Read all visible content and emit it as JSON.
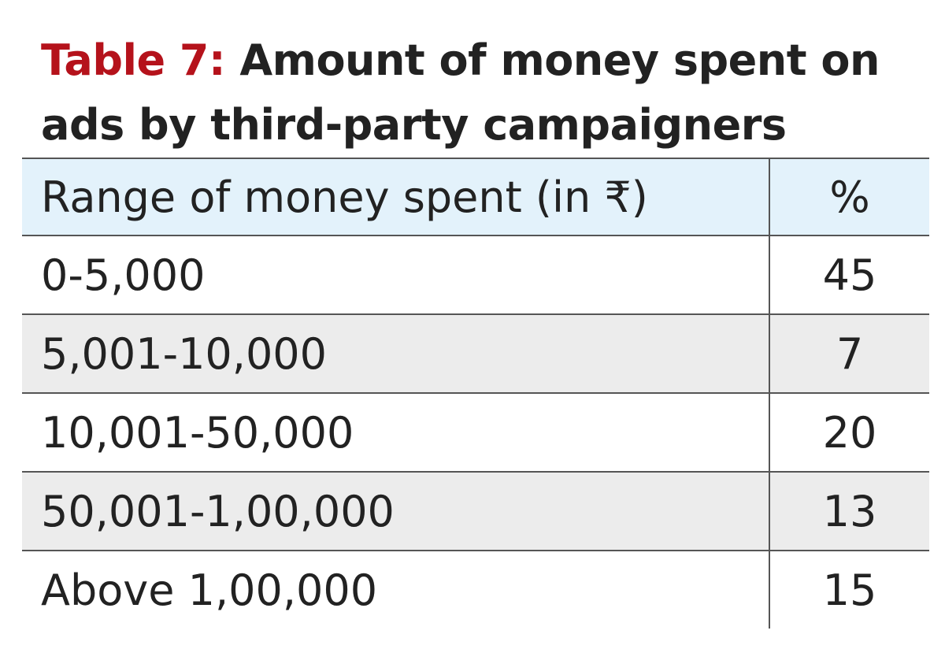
{
  "title": {
    "label": "Table 7:",
    "text": "Amount of money spent on ads by third-party campaigners"
  },
  "colors": {
    "title_label": "#b5121b",
    "header_bg": "#e3f2fb",
    "shaded_row_bg": "#ececec",
    "rule": "#555555"
  },
  "chart_data": {
    "type": "table",
    "title": "Table 7: Amount of money spent on ads by third-party campaigners",
    "columns": [
      "Range of money spent (in ₹)",
      "%"
    ],
    "rows": [
      [
        "0-5,000",
        "45"
      ],
      [
        "5,001-10,000",
        "7"
      ],
      [
        "10,001-50,000",
        "20"
      ],
      [
        "50,001-1,00,000",
        "13"
      ],
      [
        "Above 1,00,000",
        "15"
      ]
    ]
  }
}
